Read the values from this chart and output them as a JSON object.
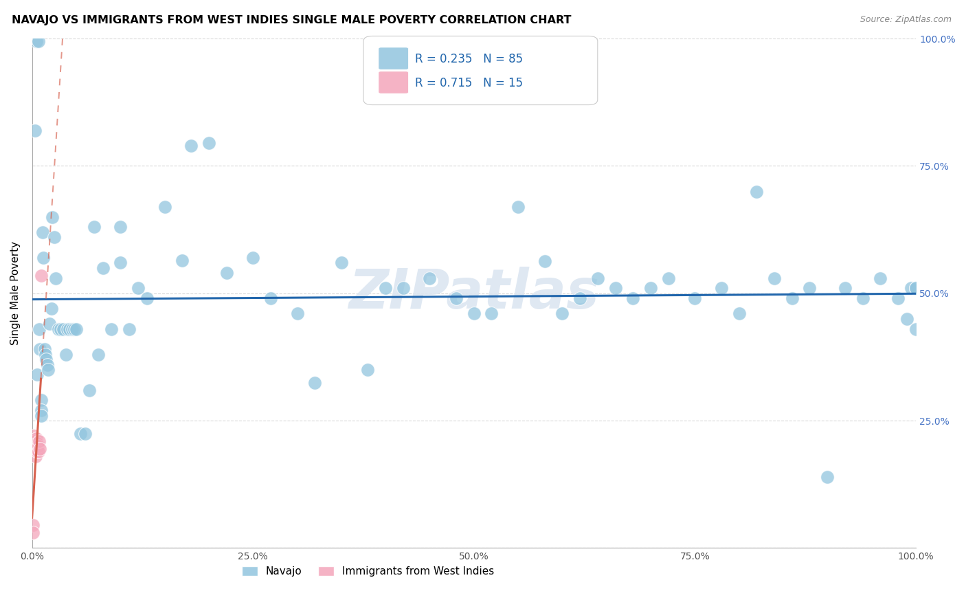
{
  "title": "NAVAJO VS IMMIGRANTS FROM WEST INDIES SINGLE MALE POVERTY CORRELATION CHART",
  "source": "Source: ZipAtlas.com",
  "ylabel": "Single Male Poverty",
  "legend_label1": "Navajo",
  "legend_label2": "Immigrants from West Indies",
  "r1": "0.235",
  "n1": "85",
  "r2": "0.715",
  "n2": "15",
  "navajo_color": "#92c5de",
  "west_indies_color": "#f4a6bb",
  "trendline1_color": "#2166ac",
  "trendline2_color": "#d6604d",
  "watermark_color": "#dce6f1",
  "navajo_x": [
    0.003,
    0.005,
    0.006,
    0.007,
    0.008,
    0.009,
    0.01,
    0.01,
    0.01,
    0.012,
    0.013,
    0.014,
    0.015,
    0.016,
    0.017,
    0.018,
    0.02,
    0.022,
    0.023,
    0.025,
    0.027,
    0.03,
    0.032,
    0.035,
    0.038,
    0.04,
    0.042,
    0.045,
    0.048,
    0.05,
    0.055,
    0.06,
    0.065,
    0.07,
    0.075,
    0.08,
    0.09,
    0.1,
    0.1,
    0.11,
    0.12,
    0.13,
    0.15,
    0.17,
    0.18,
    0.2,
    0.22,
    0.25,
    0.27,
    0.3,
    0.32,
    0.35,
    0.38,
    0.4,
    0.42,
    0.45,
    0.48,
    0.5,
    0.52,
    0.55,
    0.58,
    0.6,
    0.62,
    0.64,
    0.66,
    0.68,
    0.7,
    0.72,
    0.75,
    0.78,
    0.8,
    0.82,
    0.84,
    0.86,
    0.88,
    0.9,
    0.92,
    0.94,
    0.96,
    0.98,
    0.99,
    0.995,
    1.0,
    1.0,
    1.0
  ],
  "navajo_y": [
    0.82,
    0.995,
    0.34,
    0.995,
    0.43,
    0.39,
    0.29,
    0.27,
    0.26,
    0.62,
    0.57,
    0.39,
    0.38,
    0.37,
    0.36,
    0.35,
    0.44,
    0.47,
    0.65,
    0.61,
    0.53,
    0.43,
    0.43,
    0.43,
    0.38,
    0.43,
    0.43,
    0.43,
    0.43,
    0.43,
    0.225,
    0.225,
    0.31,
    0.63,
    0.38,
    0.55,
    0.43,
    0.63,
    0.56,
    0.43,
    0.51,
    0.49,
    0.67,
    0.565,
    0.79,
    0.795,
    0.54,
    0.57,
    0.49,
    0.46,
    0.325,
    0.56,
    0.35,
    0.51,
    0.51,
    0.53,
    0.49,
    0.46,
    0.46,
    0.67,
    0.563,
    0.46,
    0.49,
    0.53,
    0.51,
    0.49,
    0.51,
    0.53,
    0.49,
    0.51,
    0.46,
    0.7,
    0.53,
    0.49,
    0.51,
    0.14,
    0.51,
    0.49,
    0.53,
    0.49,
    0.45,
    0.51,
    0.43,
    0.51,
    0.51
  ],
  "west_indies_x": [
    0.001,
    0.001,
    0.002,
    0.003,
    0.004,
    0.004,
    0.005,
    0.005,
    0.006,
    0.006,
    0.007,
    0.007,
    0.008,
    0.009,
    0.01
  ],
  "west_indies_y": [
    0.045,
    0.03,
    0.22,
    0.21,
    0.195,
    0.18,
    0.215,
    0.2,
    0.205,
    0.19,
    0.2,
    0.19,
    0.21,
    0.195,
    0.535
  ],
  "ytick_positions": [
    0.0,
    0.25,
    0.5,
    0.75,
    1.0
  ],
  "ytick_labels_right": [
    "",
    "25.0%",
    "50.0%",
    "75.0%",
    "100.0%"
  ],
  "xtick_positions": [
    0.0,
    0.25,
    0.5,
    0.75,
    1.0
  ],
  "xtick_labels": [
    "0.0%",
    "25.0%",
    "50.0%",
    "75.0%",
    "100.0%"
  ],
  "right_tick_color": "#4472c4",
  "grid_color": "#d9d9d9",
  "spine_color": "#aaaaaa"
}
